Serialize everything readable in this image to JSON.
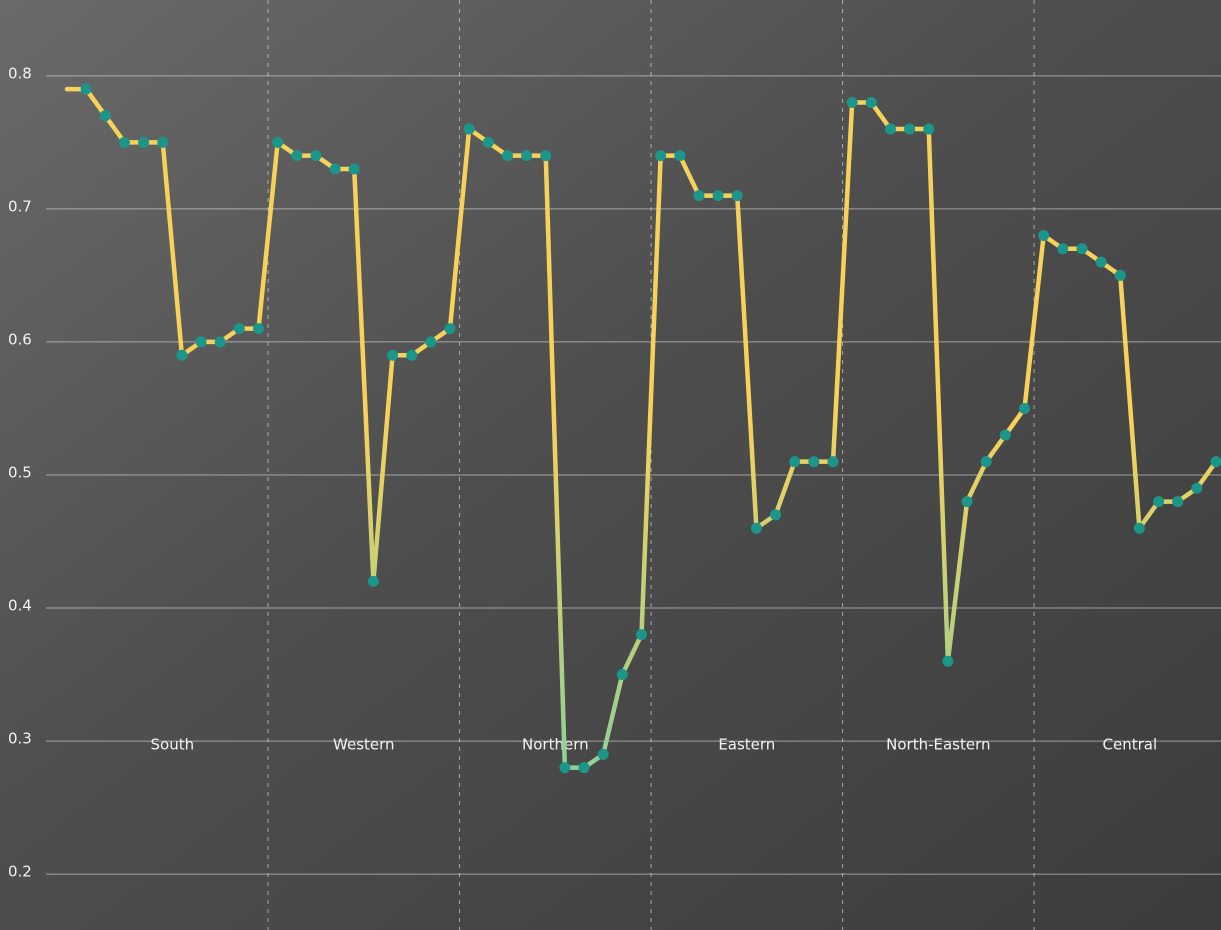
{
  "chart_data": {
    "type": "line",
    "regions": [
      "South",
      "Western",
      "Northern",
      "Eastern",
      "North-Eastern",
      "Central"
    ],
    "categories": [
      null,
      null,
      null,
      null,
      null,
      null,
      null,
      null,
      null,
      null,
      null,
      null,
      null,
      null,
      null,
      null,
      null,
      null,
      null,
      null,
      null,
      null,
      null,
      null,
      null,
      null,
      null,
      null,
      null,
      null,
      null,
      null,
      null,
      null,
      null,
      null,
      null,
      null,
      null,
      null,
      null,
      null,
      null,
      null,
      null,
      null,
      null,
      null,
      null,
      null,
      null,
      null,
      null,
      null,
      null,
      null,
      null,
      null,
      null,
      null,
      null
    ],
    "values": [
      0.79,
      0.79,
      0.77,
      0.75,
      0.75,
      0.75,
      0.59,
      0.6,
      0.6,
      0.61,
      0.61,
      0.75,
      0.74,
      0.74,
      0.73,
      0.73,
      0.42,
      0.59,
      0.59,
      0.6,
      0.61,
      0.76,
      0.75,
      0.74,
      0.74,
      0.74,
      0.28,
      0.28,
      0.29,
      0.35,
      0.38,
      0.74,
      0.74,
      0.71,
      0.71,
      0.71,
      0.46,
      0.47,
      0.51,
      0.51,
      0.51,
      0.78,
      0.78,
      0.76,
      0.76,
      0.76,
      0.36,
      0.48,
      0.51,
      0.53,
      0.55,
      0.68,
      0.67,
      0.67,
      0.66,
      0.65,
      0.46,
      0.48,
      0.48,
      0.49,
      0.51
    ],
    "line_colors": [
      "#f6d25a",
      "#7ccfa2"
    ],
    "marker_color": "#1b968a",
    "ylim": [
      0.158,
      0.857
    ],
    "yticks": [
      0.2,
      0.3,
      0.4,
      0.5,
      0.6,
      0.7,
      0.8
    ],
    "grid": true
  }
}
